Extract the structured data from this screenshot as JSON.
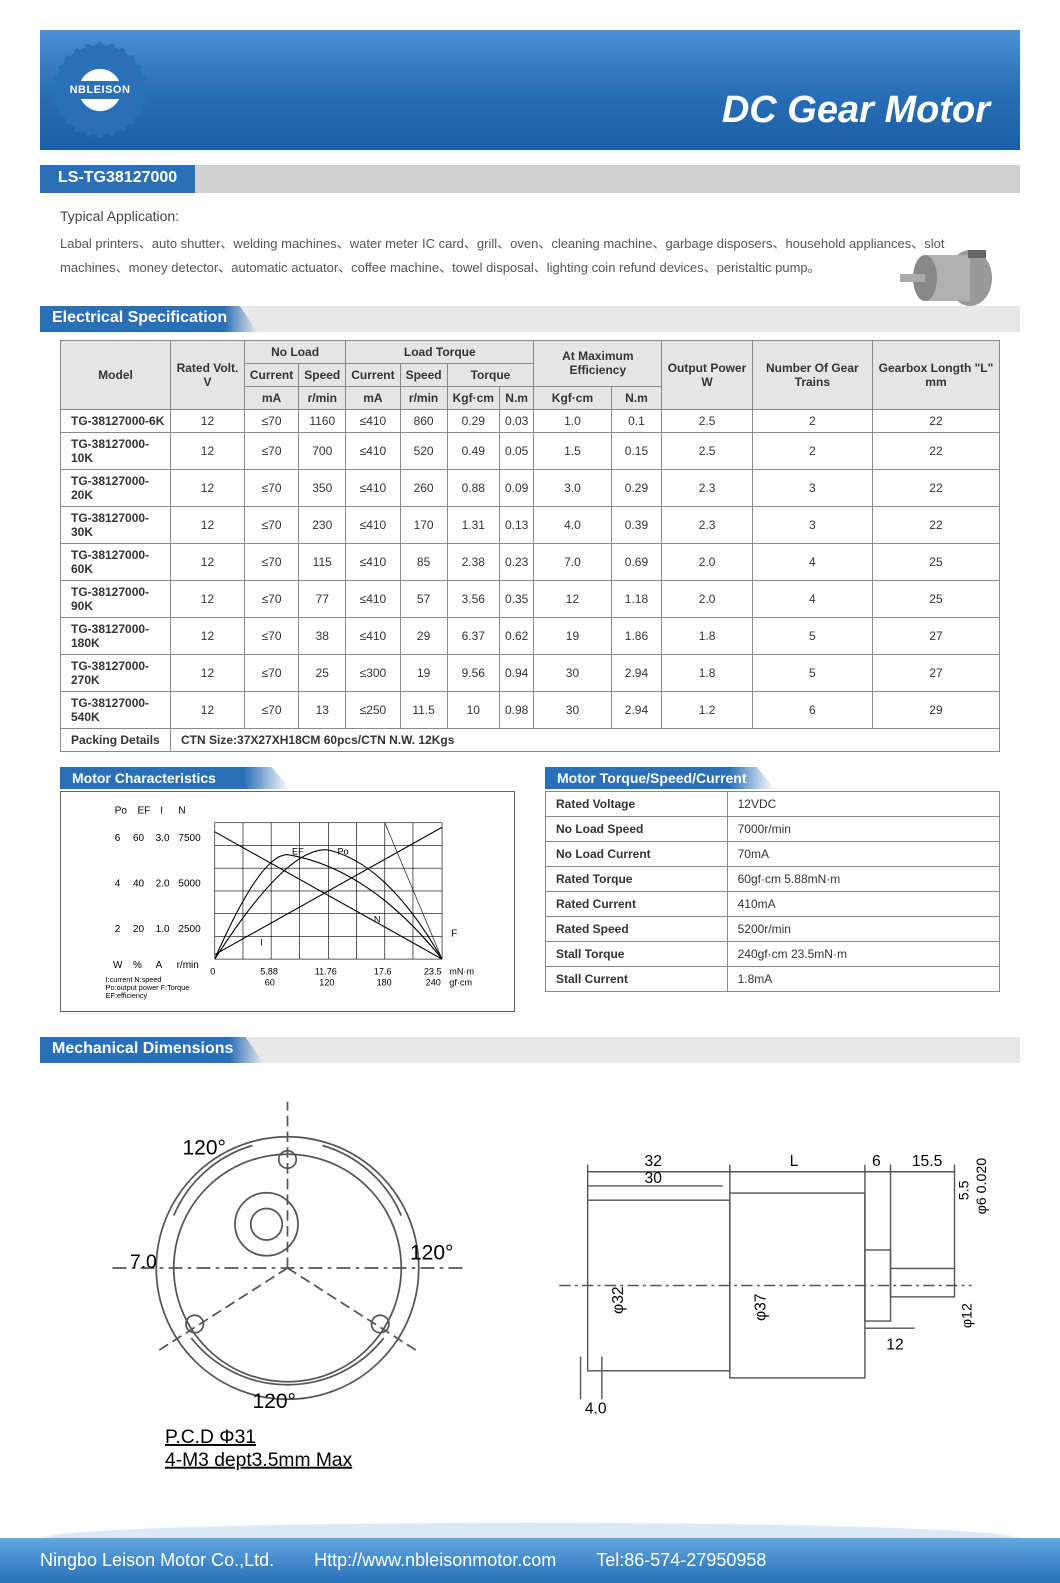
{
  "logo_text": "NBLEISON",
  "header_title": "DC Gear Motor",
  "model_number": "LS-TG38127000",
  "application": {
    "title": "Typical Application:",
    "text": "Labal printers、auto shutter、welding machines、water meter IC card、grill、oven、cleaning machine、garbage disposers、household appliances、slot machines、money detector、automatic actuator、coffee machine、towel disposal、lighting coin refund devices、peristaltic pump。"
  },
  "sections": {
    "electrical": "Electrical Specification",
    "motor_char": "Motor Characteristics",
    "motor_tsc": "Motor Torque/Speed/Current",
    "mechanical": "Mechanical Dimensions"
  },
  "spec_headers": {
    "model": "Model",
    "rated_volt": "Rated Volt. V",
    "no_load": "No Load",
    "load_torque": "Load Torque",
    "at_max_eff": "At Maximum Efficiency",
    "output_power": "Output Power W",
    "gear_trains": "Number Of Gear Trains",
    "gearbox_len": "Gearbox Longth \"L\" mm",
    "current": "Current",
    "speed": "Speed",
    "torque": "Torque",
    "ma": "mA",
    "rmin": "r/min",
    "kgfcm": "Kgf·cm",
    "nm": "N.m"
  },
  "spec_rows": [
    {
      "model": "TG-38127000-6K",
      "v": "12",
      "nlc": "≤70",
      "nls": "1160",
      "lc": "≤410",
      "ls": "860",
      "tk": "0.29",
      "tn": "0.03",
      "mk": "1.0",
      "mn": "0.1",
      "op": "2.5",
      "gt": "2",
      "gl": "22"
    },
    {
      "model": "TG-38127000-10K",
      "v": "12",
      "nlc": "≤70",
      "nls": "700",
      "lc": "≤410",
      "ls": "520",
      "tk": "0.49",
      "tn": "0.05",
      "mk": "1.5",
      "mn": "0.15",
      "op": "2.5",
      "gt": "2",
      "gl": "22"
    },
    {
      "model": "TG-38127000-20K",
      "v": "12",
      "nlc": "≤70",
      "nls": "350",
      "lc": "≤410",
      "ls": "260",
      "tk": "0.88",
      "tn": "0.09",
      "mk": "3.0",
      "mn": "0.29",
      "op": "2.3",
      "gt": "3",
      "gl": "22"
    },
    {
      "model": "TG-38127000-30K",
      "v": "12",
      "nlc": "≤70",
      "nls": "230",
      "lc": "≤410",
      "ls": "170",
      "tk": "1.31",
      "tn": "0.13",
      "mk": "4.0",
      "mn": "0.39",
      "op": "2.3",
      "gt": "3",
      "gl": "22"
    },
    {
      "model": "TG-38127000-60K",
      "v": "12",
      "nlc": "≤70",
      "nls": "115",
      "lc": "≤410",
      "ls": "85",
      "tk": "2.38",
      "tn": "0.23",
      "mk": "7.0",
      "mn": "0.69",
      "op": "2.0",
      "gt": "4",
      "gl": "25"
    },
    {
      "model": "TG-38127000-90K",
      "v": "12",
      "nlc": "≤70",
      "nls": "77",
      "lc": "≤410",
      "ls": "57",
      "tk": "3.56",
      "tn": "0.35",
      "mk": "12",
      "mn": "1.18",
      "op": "2.0",
      "gt": "4",
      "gl": "25"
    },
    {
      "model": "TG-38127000-180K",
      "v": "12",
      "nlc": "≤70",
      "nls": "38",
      "lc": "≤410",
      "ls": "29",
      "tk": "6.37",
      "tn": "0.62",
      "mk": "19",
      "mn": "1.86",
      "op": "1.8",
      "gt": "5",
      "gl": "27"
    },
    {
      "model": "TG-38127000-270K",
      "v": "12",
      "nlc": "≤70",
      "nls": "25",
      "lc": "≤300",
      "ls": "19",
      "tk": "9.56",
      "tn": "0.94",
      "mk": "30",
      "mn": "2.94",
      "op": "1.8",
      "gt": "5",
      "gl": "27"
    },
    {
      "model": "TG-38127000-540K",
      "v": "12",
      "nlc": "≤70",
      "nls": "13",
      "lc": "≤250",
      "ls": "11.5",
      "tk": "10",
      "tn": "0.98",
      "mk": "30",
      "mn": "2.94",
      "op": "1.2",
      "gt": "6",
      "gl": "29"
    }
  ],
  "packing": {
    "label": "Packing Details",
    "value": "CTN Size:37X27XH18CM 60pcs/CTN     N.W. 12Kgs"
  },
  "chart": {
    "y_labels_po": [
      "6",
      "4",
      "2",
      "W"
    ],
    "y_labels_ef": [
      "60",
      "40",
      "20",
      "%"
    ],
    "y_labels_i": [
      "3.0",
      "2.0",
      "1.0",
      "A"
    ],
    "y_labels_n": [
      "7500",
      "5000",
      "2500",
      "r/min"
    ],
    "header_labels": [
      "Po",
      "EF",
      "I",
      "N"
    ],
    "x_zero": "0",
    "x_ticks_top": [
      "5.88",
      "11.76",
      "17.6",
      "23.5"
    ],
    "x_ticks_bot": [
      "60",
      "120",
      "180",
      "240"
    ],
    "x_unit_top": "mN·m",
    "x_unit_bot": "gf·cm",
    "x_label": "F",
    "legend": "I:current N:speed\nPo:output power F:Torque\nEF:efficiency",
    "curve_labels": {
      "ef": "EF",
      "po": "Po",
      "i": "I",
      "n": "N"
    }
  },
  "params": [
    {
      "k": "Rated Voltage",
      "v": "12VDC"
    },
    {
      "k": "No Load Speed",
      "v": "7000r/min"
    },
    {
      "k": "No Load Current",
      "v": "70mA"
    },
    {
      "k": "Rated Torque",
      "v": "60gf·cm     5.88mN·m"
    },
    {
      "k": "Rated Current",
      "v": "410mA"
    },
    {
      "k": "Rated Speed",
      "v": "5200r/min"
    },
    {
      "k": "Stall Torque",
      "v": "240gf·cm    23.5mN·m"
    },
    {
      "k": "Stall Current",
      "v": "1.8mA"
    }
  ],
  "mech": {
    "front": {
      "angle": "120°",
      "dim1": "7.0",
      "pcd": "P.C.D Φ31",
      "thread": "4-M3 dept3.5mm Max"
    },
    "side": {
      "d32": "32",
      "d30": "30",
      "L": "L",
      "d6": "6",
      "d15": "15.5",
      "d5": "5.5",
      "phi6": "φ6 0.020",
      "phi12": "φ12",
      "phi32": "φ32",
      "phi37": "φ37",
      "d12": "12",
      "d4": "4.0"
    }
  },
  "footer": {
    "company": "Ningbo Leison Motor Co.,Ltd.",
    "url": "Http://www.nbleisonmotor.com",
    "tel": "Tel:86-574-27950958"
  },
  "colors": {
    "blue": "#2970b8",
    "lightblue": "#5fa8e0",
    "gray": "#d0d0d0"
  }
}
